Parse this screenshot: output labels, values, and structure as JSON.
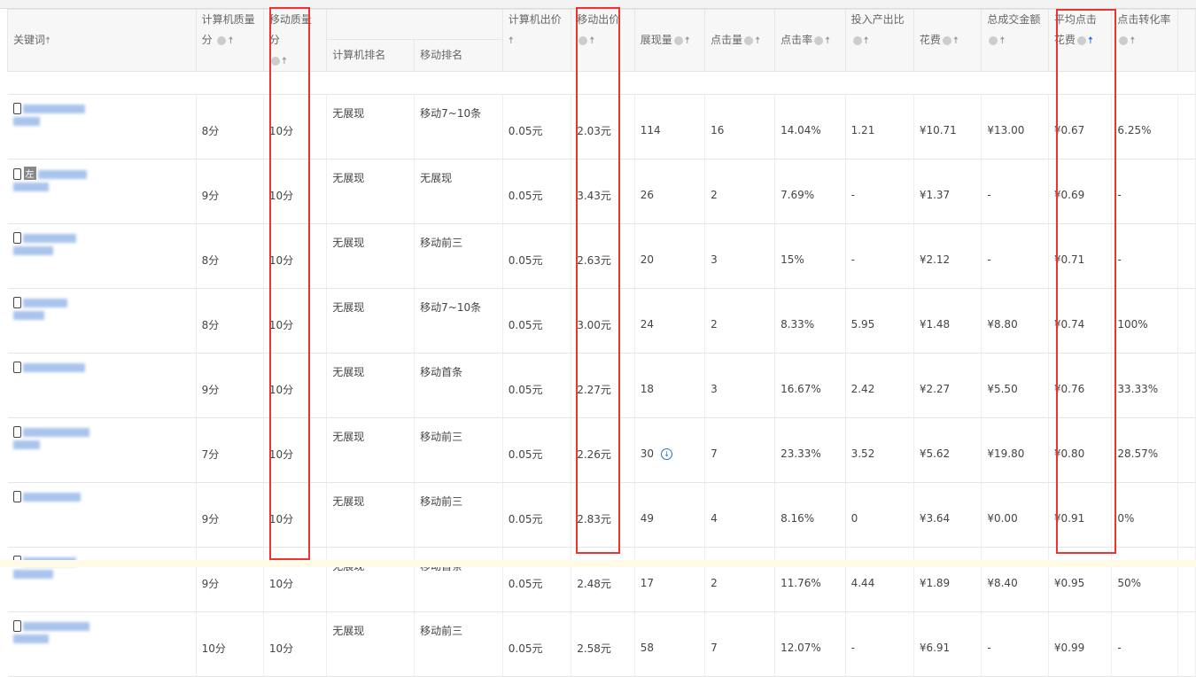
{
  "headers": {
    "keyword": "关键词",
    "pc_quality": "计算机质量分",
    "mobile_quality": "移动质量分",
    "pc_rank": "计算机排名",
    "mobile_rank": "移动排名",
    "pc_bid": "计算机出价",
    "mobile_bid": "移动出价",
    "impressions": "展现量",
    "clicks": "点击量",
    "ctr": "点击率",
    "roi": "投入产出比",
    "cost": "花费",
    "gmv": "总成交金额",
    "avg_cpc": "平均点击花费",
    "conversion": "点击转化率"
  },
  "sorted_column": "avg_cpc",
  "highlight_color": "#e33333",
  "rows": [
    {
      "left_badge": "",
      "pc_quality": "8分",
      "mobile_quality": "10分",
      "pc_rank": "无展现",
      "mobile_rank": "移动7~10条",
      "pc_bid": "0.05元",
      "mobile_bid": "2.03元",
      "impressions": "114",
      "clicks": "16",
      "ctr": "14.04%",
      "roi": "1.21",
      "cost": "¥10.71",
      "gmv": "¥13.00",
      "avg_cpc": "¥0.67",
      "conversion": "6.25%"
    },
    {
      "left_badge": "左",
      "pc_quality": "9分",
      "mobile_quality": "10分",
      "pc_rank": "无展现",
      "mobile_rank": "无展现",
      "pc_bid": "0.05元",
      "mobile_bid": "3.43元",
      "impressions": "26",
      "clicks": "2",
      "ctr": "7.69%",
      "roi": "-",
      "cost": "¥1.37",
      "gmv": "-",
      "avg_cpc": "¥0.69",
      "conversion": "-"
    },
    {
      "left_badge": "",
      "pc_quality": "8分",
      "mobile_quality": "10分",
      "pc_rank": "无展现",
      "mobile_rank": "移动前三",
      "pc_bid": "0.05元",
      "mobile_bid": "2.63元",
      "impressions": "20",
      "clicks": "3",
      "ctr": "15%",
      "roi": "-",
      "cost": "¥2.12",
      "gmv": "-",
      "avg_cpc": "¥0.71",
      "conversion": "-"
    },
    {
      "left_badge": "",
      "pc_quality": "8分",
      "mobile_quality": "10分",
      "pc_rank": "无展现",
      "mobile_rank": "移动7~10条",
      "pc_bid": "0.05元",
      "mobile_bid": "3.00元",
      "impressions": "24",
      "clicks": "2",
      "ctr": "8.33%",
      "roi": "5.95",
      "cost": "¥1.48",
      "gmv": "¥8.80",
      "avg_cpc": "¥0.74",
      "conversion": "100%"
    },
    {
      "left_badge": "",
      "pc_quality": "9分",
      "mobile_quality": "10分",
      "pc_rank": "无展现",
      "mobile_rank": "移动首条",
      "pc_bid": "0.05元",
      "mobile_bid": "2.27元",
      "impressions": "18",
      "clicks": "3",
      "ctr": "16.67%",
      "roi": "2.42",
      "cost": "¥2.27",
      "gmv": "¥5.50",
      "avg_cpc": "¥0.76",
      "conversion": "33.33%"
    },
    {
      "left_badge": "",
      "pc_quality": "7分",
      "mobile_quality": "10分",
      "pc_rank": "无展现",
      "mobile_rank": "移动前三",
      "pc_bid": "0.05元",
      "mobile_bid": "2.26元",
      "impressions": "30",
      "clicks": "7",
      "ctr": "23.33%",
      "roi": "3.52",
      "cost": "¥5.62",
      "gmv": "¥19.80",
      "avg_cpc": "¥0.80",
      "conversion": "28.57%",
      "download": true
    },
    {
      "left_badge": "",
      "pc_quality": "9分",
      "mobile_quality": "10分",
      "pc_rank": "无展现",
      "mobile_rank": "移动前三",
      "pc_bid": "0.05元",
      "mobile_bid": "2.83元",
      "impressions": "49",
      "clicks": "4",
      "ctr": "8.16%",
      "roi": "0",
      "cost": "¥3.64",
      "gmv": "¥0.00",
      "avg_cpc": "¥0.91",
      "conversion": "0%"
    },
    {
      "left_badge": "",
      "pc_quality": "9分",
      "mobile_quality": "10分",
      "pc_rank": "无展现",
      "mobile_rank": "移动首条",
      "pc_bid": "0.05元",
      "mobile_bid": "2.48元",
      "impressions": "17",
      "clicks": "2",
      "ctr": "11.76%",
      "roi": "4.44",
      "cost": "¥1.89",
      "gmv": "¥8.40",
      "avg_cpc": "¥0.95",
      "conversion": "50%"
    },
    {
      "left_badge": "",
      "pc_quality": "10分",
      "mobile_quality": "10分",
      "pc_rank": "无展现",
      "mobile_rank": "移动前三",
      "pc_bid": "0.05元",
      "mobile_bid": "2.58元",
      "impressions": "58",
      "clicks": "7",
      "ctr": "12.07%",
      "roi": "-",
      "cost": "¥6.91",
      "gmv": "-",
      "avg_cpc": "¥0.99",
      "conversion": "-"
    }
  ]
}
